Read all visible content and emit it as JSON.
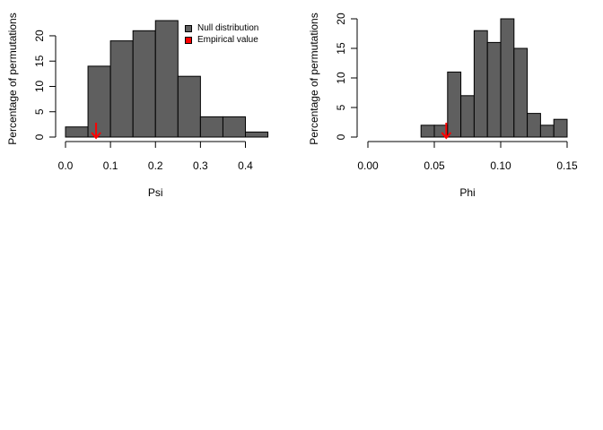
{
  "chart_data": [
    {
      "type": "bar",
      "variant": "histogram",
      "xlabel": "Psi",
      "ylabel": "Percentage of permutations",
      "bin_edges": [
        0.0,
        0.05,
        0.1,
        0.15,
        0.2,
        0.25,
        0.3,
        0.35,
        0.4,
        0.45
      ],
      "values": [
        2,
        14,
        19,
        21,
        23,
        12,
        4,
        4,
        1
      ],
      "xticks": [
        "0.0",
        "0.1",
        "0.2",
        "0.3",
        "0.4"
      ],
      "xtick_values": [
        0.0,
        0.1,
        0.2,
        0.3,
        0.4
      ],
      "yticks": [
        "0",
        "5",
        "10",
        "15",
        "20"
      ],
      "ytick_values": [
        0,
        5,
        10,
        15,
        20
      ],
      "xlim": [
        0.0,
        0.45
      ],
      "ylim": [
        0,
        23
      ],
      "empirical_value": 0.068,
      "legend": {
        "placement": "top-right",
        "items": [
          {
            "label": "Null distribution",
            "color": "#5f5f5f"
          },
          {
            "label": "Empirical value",
            "color": "#ff0000"
          }
        ]
      }
    },
    {
      "type": "bar",
      "variant": "histogram",
      "xlabel": "Phi",
      "ylabel": "Percentage of permutations",
      "bin_edges": [
        0.04,
        0.05,
        0.06,
        0.07,
        0.08,
        0.09,
        0.1,
        0.11,
        0.12,
        0.13,
        0.14,
        0.15
      ],
      "values": [
        2,
        2,
        11,
        7,
        18,
        16,
        20,
        15,
        4,
        2,
        3
      ],
      "xticks": [
        "0.00",
        "0.05",
        "0.10",
        "0.15"
      ],
      "xtick_values": [
        0.0,
        0.05,
        0.1,
        0.15
      ],
      "yticks": [
        "0",
        "5",
        "10",
        "15",
        "20"
      ],
      "ytick_values": [
        0,
        5,
        10,
        15,
        20
      ],
      "xlim": [
        0.0,
        0.15
      ],
      "ylim": [
        0,
        20
      ],
      "empirical_value": 0.059
    }
  ],
  "colors": {
    "bar_fill": "#5f5f5f",
    "arrow": "#ff0000"
  }
}
